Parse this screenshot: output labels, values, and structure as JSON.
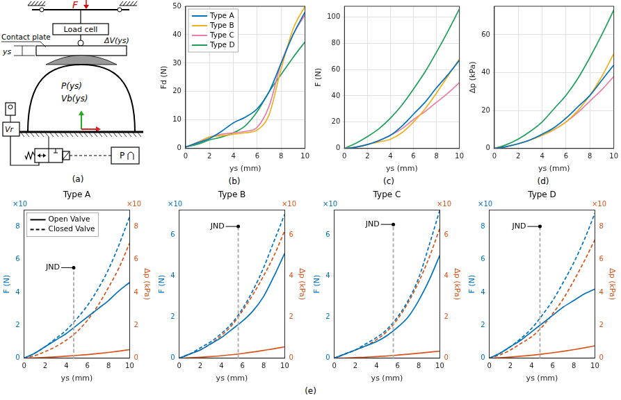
{
  "diagram": {
    "label": "(a)",
    "force": "F",
    "load_cell": "Load cell",
    "contact_plate": "Contact plate",
    "volume_change": "ΔV(ys)",
    "displacement": "ys",
    "pressure": "P(ys)",
    "volume": "Vb(ys)",
    "reservoir": "Vr",
    "controller": "P"
  },
  "group_label": "(e)",
  "chart_data": [
    {
      "type": "line",
      "panel_label": "(b)",
      "x_label": "ys (mm)",
      "y_label": "Fd (N)",
      "x": [
        0,
        1,
        2,
        3,
        4,
        5,
        6,
        7,
        8,
        9,
        10
      ],
      "xlim": [
        0,
        10
      ],
      "xticks": [
        0,
        2,
        4,
        6,
        8,
        10
      ],
      "ylim": [
        0,
        50
      ],
      "yticks": [
        0,
        10,
        20,
        30,
        40,
        50
      ],
      "grid": true,
      "legend": "top-left",
      "series": [
        {
          "name": "Type A",
          "color": "#0072BD",
          "values": [
            0.5,
            2,
            3.5,
            6,
            9,
            11,
            14,
            20,
            30,
            40,
            48
          ]
        },
        {
          "name": "Type B",
          "color": "#EDB120",
          "values": [
            0.5,
            2,
            4,
            4.5,
            5,
            5.5,
            6.5,
            12,
            28,
            42,
            50
          ]
        },
        {
          "name": "Type C",
          "color": "#E87DA8",
          "values": [
            0.5,
            2.2,
            4,
            5,
            5.5,
            6,
            7.5,
            15,
            30,
            40,
            47
          ]
        },
        {
          "name": "Type D",
          "color": "#1E9E5A",
          "values": [
            0.5,
            1.5,
            3,
            4,
            5.5,
            8,
            13,
            20,
            26,
            32,
            37.5
          ]
        }
      ]
    },
    {
      "type": "line",
      "panel_label": "(c)",
      "x_label": "ys (mm)",
      "y_label": "F (N)",
      "x": [
        0,
        1,
        2,
        3,
        4,
        5,
        6,
        7,
        8,
        9,
        10
      ],
      "xlim": [
        0,
        10
      ],
      "xticks": [
        0,
        2,
        4,
        6,
        8,
        10
      ],
      "ylim": [
        0,
        108
      ],
      "yticks": [
        0,
        20,
        40,
        60,
        80,
        100
      ],
      "grid": true,
      "series": [
        {
          "name": "Type A",
          "color": "#0072BD",
          "values": [
            0,
            1,
            3,
            6,
            10,
            17,
            26,
            35,
            46,
            56,
            67
          ]
        },
        {
          "name": "Type B",
          "color": "#EDB120",
          "values": [
            0,
            1,
            3,
            5,
            7,
            12,
            20,
            30,
            42,
            55,
            68
          ]
        },
        {
          "name": "Type C",
          "color": "#E87DA8",
          "values": [
            0,
            1,
            3,
            6,
            10,
            15,
            22,
            28,
            35,
            42,
            50
          ]
        },
        {
          "name": "Type D",
          "color": "#1E9E5A",
          "values": [
            0,
            4,
            9,
            15,
            23,
            33,
            45,
            58,
            73,
            89,
            106
          ]
        }
      ]
    },
    {
      "type": "line",
      "panel_label": "(d)",
      "x_label": "ys (mm)",
      "y_label": "Δp (kPa)",
      "x": [
        0,
        1,
        2,
        3,
        4,
        5,
        6,
        7,
        8,
        9,
        10
      ],
      "xlim": [
        0,
        10
      ],
      "xticks": [
        0,
        2,
        4,
        6,
        8,
        10
      ],
      "ylim": [
        0,
        75
      ],
      "yticks": [
        0,
        20,
        40,
        60
      ],
      "grid": true,
      "series": [
        {
          "name": "Type A",
          "color": "#0072BD",
          "values": [
            0,
            1,
            2.5,
            4.5,
            7.5,
            11,
            16,
            22,
            28,
            36,
            44
          ]
        },
        {
          "name": "Type B",
          "color": "#EDB120",
          "values": [
            0,
            1,
            2.5,
            4.5,
            7,
            10,
            14,
            20,
            28,
            38,
            50
          ]
        },
        {
          "name": "Type C",
          "color": "#E87DA8",
          "values": [
            0,
            1,
            2.5,
            4.5,
            7,
            10,
            14,
            19,
            25,
            31,
            38
          ]
        },
        {
          "name": "Type D",
          "color": "#1E9E5A",
          "values": [
            0,
            2,
            5,
            9,
            14,
            21,
            28,
            37,
            48,
            60,
            73
          ]
        }
      ]
    },
    {
      "type": "line",
      "title": "Type A",
      "x_label": "ys (mm)",
      "y_label": "F (N)",
      "y2_label": "Δp (kPa)",
      "y_multiplier": "×10",
      "y2_multiplier": "×10",
      "x": [
        0,
        1,
        2,
        3,
        4,
        5,
        6,
        7,
        8,
        9,
        10
      ],
      "xlim": [
        0,
        10
      ],
      "xticks": [
        0,
        2,
        4,
        6,
        8,
        10
      ],
      "ylim": [
        0,
        9
      ],
      "yticks": [
        0,
        2,
        4,
        6,
        8
      ],
      "y2lim": [
        0,
        9
      ],
      "y2ticks": [
        0,
        2,
        4,
        6,
        8
      ],
      "grid": false,
      "legend": "top-left",
      "jnd": {
        "label": "JND",
        "x": 4.7,
        "y": 5.5
      },
      "series": [
        {
          "name": "Open Valve",
          "color": "#0072BD",
          "line_style": "solid",
          "values": [
            0,
            0.3,
            0.7,
            1.1,
            1.5,
            2.0,
            2.5,
            3.0,
            3.5,
            4.1,
            4.6
          ]
        },
        {
          "name": "Closed Valve",
          "color": "#0072BD",
          "line_style": "dashed",
          "values": [
            0,
            0.3,
            0.7,
            1.2,
            1.7,
            2.4,
            3.2,
            4.2,
            5.4,
            6.9,
            8.6
          ]
        },
        {
          "name": "Open Valve",
          "color": "#D95319",
          "line_style": "solid",
          "axis": "y2",
          "values": [
            0,
            0.02,
            0.05,
            0.08,
            0.12,
            0.17,
            0.22,
            0.28,
            0.35,
            0.43,
            0.52
          ]
        },
        {
          "name": "Closed Valve",
          "color": "#D95319",
          "line_style": "dashed",
          "axis": "y2",
          "values": [
            0,
            0.15,
            0.4,
            0.7,
            1.1,
            1.6,
            2.3,
            3.2,
            4.3,
            5.5,
            7.0
          ]
        }
      ]
    },
    {
      "type": "line",
      "title": "Type B",
      "x_label": "ys (mm)",
      "y_label": "F (N)",
      "y2_label": "Δp (kPa)",
      "y_multiplier": "×10",
      "y2_multiplier": "×10",
      "x": [
        0,
        1,
        2,
        3,
        4,
        5,
        6,
        7,
        8,
        9,
        10
      ],
      "xlim": [
        0,
        10
      ],
      "xticks": [
        0,
        2,
        4,
        6,
        8,
        10
      ],
      "ylim": [
        0,
        7.2
      ],
      "yticks": [
        0,
        2,
        4,
        6
      ],
      "y2lim": [
        0,
        7.2
      ],
      "y2ticks": [
        0,
        2,
        4,
        6
      ],
      "grid": false,
      "jnd": {
        "label": "JND",
        "x": 5.6,
        "y": 6.4
      },
      "series": [
        {
          "name": "Open Valve",
          "color": "#0072BD",
          "line_style": "solid",
          "values": [
            0,
            0.2,
            0.4,
            0.7,
            1.0,
            1.4,
            1.8,
            2.3,
            3.0,
            4.0,
            5.1
          ]
        },
        {
          "name": "Closed Valve",
          "color": "#0072BD",
          "line_style": "dashed",
          "values": [
            0,
            0.2,
            0.5,
            0.8,
            1.2,
            1.7,
            2.4,
            3.3,
            4.4,
            5.7,
            7.0
          ]
        },
        {
          "name": "Open Valve",
          "color": "#D95319",
          "line_style": "solid",
          "axis": "y2",
          "values": [
            0,
            0.02,
            0.05,
            0.08,
            0.12,
            0.17,
            0.23,
            0.3,
            0.38,
            0.46,
            0.55
          ]
        },
        {
          "name": "Closed Valve",
          "color": "#D95319",
          "line_style": "dashed",
          "axis": "y2",
          "values": [
            0,
            0.2,
            0.4,
            0.7,
            1.1,
            1.6,
            2.3,
            3.1,
            4.0,
            5.0,
            6.2
          ]
        }
      ]
    },
    {
      "type": "line",
      "title": "Type C",
      "x_label": "ys (mm)",
      "y_label": "F (N)",
      "y2_label": "Δp (kPa)",
      "y_multiplier": "×10",
      "y2_multiplier": "×10",
      "x": [
        0,
        1,
        2,
        3,
        4,
        5,
        6,
        7,
        8,
        9,
        10
      ],
      "xlim": [
        0,
        10
      ],
      "xticks": [
        0,
        2,
        4,
        6,
        8,
        10
      ],
      "ylim": [
        0,
        7.2
      ],
      "yticks": [
        0,
        2,
        4,
        6
      ],
      "y2lim": [
        0,
        7.2
      ],
      "y2ticks": [
        0,
        2,
        4,
        6
      ],
      "grid": false,
      "jnd": {
        "label": "JND",
        "x": 5.6,
        "y": 6.5
      },
      "series": [
        {
          "name": "Open Valve",
          "color": "#0072BD",
          "line_style": "solid",
          "values": [
            0,
            0.2,
            0.4,
            0.6,
            0.8,
            1.1,
            1.5,
            2.0,
            2.8,
            3.8,
            5.0
          ]
        },
        {
          "name": "Closed Valve",
          "color": "#0072BD",
          "line_style": "dashed",
          "values": [
            0,
            0.2,
            0.4,
            0.7,
            1.0,
            1.4,
            2.0,
            2.8,
            3.9,
            5.5,
            7.2
          ]
        },
        {
          "name": "Open Valve",
          "color": "#D95319",
          "line_style": "solid",
          "axis": "y2",
          "values": [
            0,
            0.01,
            0.03,
            0.05,
            0.08,
            0.11,
            0.15,
            0.19,
            0.24,
            0.29,
            0.34
          ]
        },
        {
          "name": "Closed Valve",
          "color": "#D95319",
          "line_style": "dashed",
          "axis": "y2",
          "values": [
            0,
            0.2,
            0.4,
            0.6,
            0.9,
            1.3,
            1.9,
            2.7,
            3.7,
            4.9,
            6.3
          ]
        }
      ]
    },
    {
      "type": "line",
      "title": "Type D",
      "x_label": "ys (mm)",
      "y_label": "F (N)",
      "y2_label": "Δp (kPa)",
      "y_multiplier": "×10",
      "y2_multiplier": "×10",
      "x": [
        0,
        1,
        2,
        3,
        4,
        5,
        6,
        7,
        8,
        9,
        10
      ],
      "xlim": [
        0,
        10
      ],
      "xticks": [
        0,
        2,
        4,
        6,
        8,
        10
      ],
      "ylim": [
        0,
        9
      ],
      "yticks": [
        0,
        2,
        4,
        6,
        8
      ],
      "y2lim": [
        0,
        9
      ],
      "y2ticks": [
        0,
        2,
        4,
        6,
        8
      ],
      "grid": false,
      "jnd": {
        "label": "JND",
        "x": 4.8,
        "y": 8.0
      },
      "series": [
        {
          "name": "Open Valve",
          "color": "#0072BD",
          "line_style": "solid",
          "values": [
            0,
            0.3,
            0.7,
            1.1,
            1.6,
            2.1,
            2.6,
            3.1,
            3.5,
            3.9,
            4.2
          ]
        },
        {
          "name": "Closed Valve",
          "color": "#0072BD",
          "line_style": "dashed",
          "values": [
            0,
            0.3,
            0.7,
            1.2,
            1.8,
            2.6,
            3.5,
            4.6,
            5.8,
            7.2,
            8.8
          ]
        },
        {
          "name": "Open Valve",
          "color": "#D95319",
          "line_style": "solid",
          "axis": "y2",
          "values": [
            0,
            0.03,
            0.07,
            0.12,
            0.18,
            0.25,
            0.33,
            0.42,
            0.52,
            0.63,
            0.75
          ]
        },
        {
          "name": "Closed Valve",
          "color": "#D95319",
          "line_style": "dashed",
          "axis": "y2",
          "values": [
            0,
            0.2,
            0.5,
            0.9,
            1.3,
            1.9,
            2.7,
            3.6,
            4.7,
            5.9,
            7.2
          ]
        }
      ]
    }
  ]
}
